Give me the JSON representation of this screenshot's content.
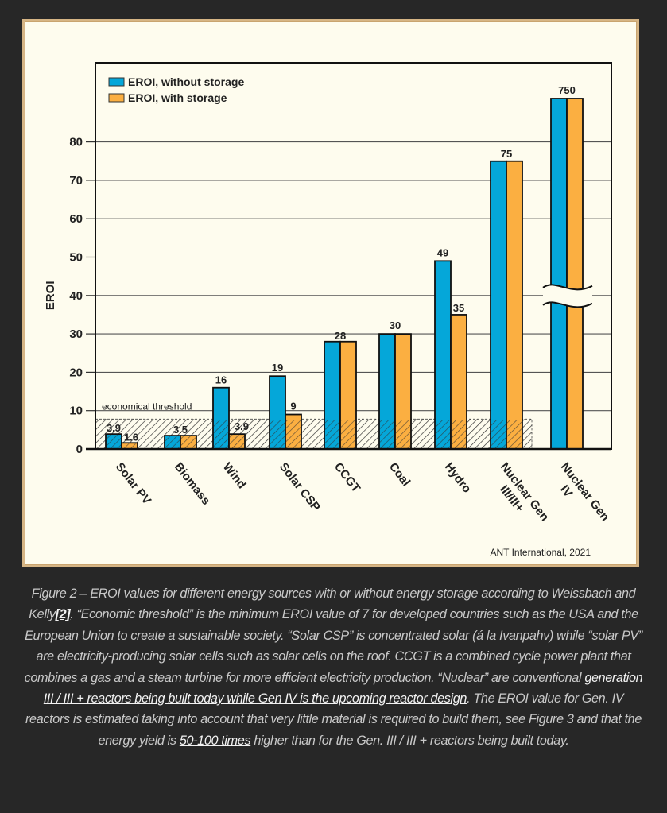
{
  "chart_data": {
    "type": "bar",
    "title": "",
    "xlabel": "",
    "ylabel": "EROI",
    "ylim": [
      0,
      80
    ],
    "yticks": [
      0,
      10,
      20,
      30,
      40,
      50,
      60,
      70,
      80
    ],
    "grid": true,
    "legend_position": "top-left",
    "categories": [
      "Solar PV",
      "Biomass",
      "Wind",
      "Solar CSP",
      "CCGT",
      "Coal",
      "Hydro",
      "Nuclear Gen III/III+",
      "Nuclear Gen IV"
    ],
    "category_lines": [
      [
        "Solar PV"
      ],
      [
        "Biomass"
      ],
      [
        "Wind"
      ],
      [
        "Solar CSP"
      ],
      [
        "CCGT"
      ],
      [
        "Coal"
      ],
      [
        "Hydro"
      ],
      [
        "Nuclear Gen",
        "III/III+"
      ],
      [
        "Nuclear Gen",
        "IV"
      ]
    ],
    "series": [
      {
        "name": "EROI, without storage",
        "color": "#05a7d9",
        "values": [
          3.9,
          3.5,
          16,
          19,
          28,
          30,
          49,
          75,
          750
        ]
      },
      {
        "name": "EROI, with storage",
        "color": "#fbaf41",
        "values": [
          1.6,
          3.5,
          3.9,
          9,
          28,
          30,
          35,
          75,
          750
        ]
      }
    ],
    "data_labels": [
      {
        "category": "Solar PV",
        "labels": [
          "3.9",
          "1.6"
        ]
      },
      {
        "category": "Biomass",
        "labels": [
          "3.5"
        ]
      },
      {
        "category": "Wind",
        "labels": [
          "16",
          "3.9"
        ]
      },
      {
        "category": "Solar CSP",
        "labels": [
          "19",
          "9"
        ]
      },
      {
        "category": "CCGT",
        "labels": [
          "28"
        ]
      },
      {
        "category": "Coal",
        "labels": [
          "30"
        ]
      },
      {
        "category": "Hydro",
        "labels": [
          "49",
          "35"
        ]
      },
      {
        "category": "Nuclear Gen III/III+",
        "labels": [
          "75"
        ]
      },
      {
        "category": "Nuclear Gen IV",
        "labels": [
          "750"
        ]
      }
    ],
    "axis_break": {
      "category": "Nuclear Gen IV",
      "note": "broken axis; bar exceeds scale"
    },
    "threshold": {
      "label": "economical threshold",
      "value": 7
    },
    "source": "ANT International, 2021"
  },
  "caption": {
    "segments": [
      {
        "text": "Figure 2 – EROI values for different energy sources with or without energy storage according to Weissbach and Kelly",
        "link": false
      },
      {
        "text": "[2]",
        "link": true,
        "ref": true
      },
      {
        "text": ". “Economic threshold” is the minimum EROI value of 7 for developed countries such as the USA and the European Union to create a sustainable society. “Solar CSP” is concentrated solar (á la Ivanpahv) while “solar PV” are electricity-producing solar cells such as solar cells on the roof. CCGT is a combined cycle power plant that combines a gas and a steam turbine for more efficient electricity production. “Nuclear” are conventional ",
        "link": false
      },
      {
        "text": "generation III / III + reactors being built today while Gen IV is the upcoming reactor design",
        "link": true
      },
      {
        "text": ". The EROI value for Gen. IV reactors is estimated taking into account that very little material is required to build them, see Figure 3 and that the energy yield is ",
        "link": false
      },
      {
        "text": "50-100 times",
        "link": true
      },
      {
        "text": " higher than for the Gen. III / III + reactors being built today.",
        "link": false
      }
    ]
  }
}
